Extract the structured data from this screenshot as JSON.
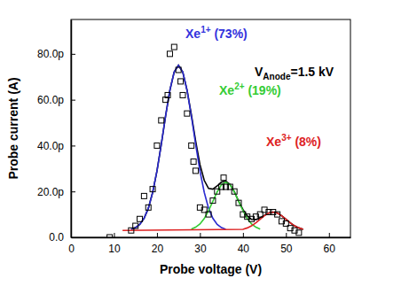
{
  "chart_data": {
    "type": "scatter",
    "x_label": "Probe voltage (V)",
    "y_label": "Probe current (A)",
    "xlim": [
      0,
      65
    ],
    "xticks": [
      0,
      10,
      20,
      30,
      40,
      50,
      60
    ],
    "ylim": [
      0,
      9.5e-11
    ],
    "yticks": [
      {
        "value": 0,
        "label": "0.0"
      },
      {
        "value": 2e-11,
        "label": "20.0p"
      },
      {
        "value": 4e-11,
        "label": "40.0p"
      },
      {
        "value": 6e-11,
        "label": "60.0p"
      },
      {
        "value": 8e-11,
        "label": "80.0p"
      }
    ],
    "grid": false,
    "series": [
      {
        "type": "scatter",
        "marker": "square",
        "color": "#000000",
        "x": [
          9,
          14,
          15,
          16,
          17,
          18,
          19,
          20,
          21,
          22,
          22.5,
          23,
          24,
          25,
          25.5,
          26,
          27,
          28,
          28.5,
          29,
          30,
          31,
          32,
          33,
          34,
          35,
          35.5,
          36,
          37,
          38,
          39,
          40,
          41,
          42,
          43,
          44,
          45,
          46,
          47,
          48,
          49,
          50,
          51,
          52,
          53
        ],
        "values": [
          0,
          3e-12,
          5e-12,
          8e-12,
          1.8e-11,
          1.3e-11,
          2.1e-11,
          4e-11,
          5.1e-11,
          6e-11,
          6.2e-11,
          8e-11,
          8.3e-11,
          7.3e-11,
          6.8e-11,
          6.2e-11,
          5.4e-11,
          4e-11,
          3.3e-11,
          2.9e-11,
          1.3e-11,
          1.2e-11,
          1e-11,
          1.6e-11,
          2e-11,
          2.2e-11,
          2.6e-11,
          2.2e-11,
          2.2e-11,
          2e-11,
          1.5e-11,
          1e-11,
          9e-12,
          8e-12,
          9e-12,
          1e-11,
          1.2e-11,
          1.1e-11,
          1.1e-11,
          1e-11,
          7e-12,
          6e-12,
          4e-12,
          3e-12,
          2e-12
        ]
      },
      {
        "type": "line",
        "line_style": "solid",
        "color": "#000000",
        "x": [
          14,
          15,
          16,
          17,
          18,
          19,
          20,
          21,
          22,
          23,
          24,
          25,
          26,
          27,
          28,
          29,
          30,
          31,
          32,
          33,
          34,
          35,
          36,
          37,
          38,
          39,
          40,
          41,
          42,
          43,
          44,
          45,
          46,
          47,
          48,
          49,
          50,
          51,
          52,
          53,
          54
        ],
        "values": [
          3.5e-12,
          4.2e-12,
          5.6e-12,
          8.3e-12,
          1.27e-11,
          1.96e-11,
          2.89e-11,
          4.05e-11,
          5.29e-11,
          6.41e-11,
          7.21e-11,
          7.5e-11,
          7.21e-11,
          6.41e-11,
          5.35e-11,
          4.19e-11,
          3.17e-11,
          2.48e-11,
          2.13e-11,
          2.1e-11,
          2.24e-11,
          2.41e-11,
          2.45e-11,
          2.31e-11,
          1.98e-11,
          1.57e-11,
          1.21e-11,
          9.3e-12,
          7.8e-12,
          7.7e-12,
          8.5e-12,
          9.6e-12,
          1.06e-11,
          1.1e-11,
          1.06e-11,
          9.4e-12,
          7.9e-12,
          6.3e-12,
          5e-12,
          4.1e-12,
          3.5e-12
        ]
      },
      {
        "type": "line",
        "line_style": "solid",
        "color": "#2a2ad0",
        "x": [
          14,
          15,
          16,
          17,
          18,
          19,
          20,
          21,
          22,
          23,
          24,
          25,
          26,
          27,
          28,
          29,
          30,
          31,
          32,
          33,
          34,
          35,
          36
        ],
        "values": [
          3.5e-12,
          4.2e-12,
          5.6e-12,
          8.3e-12,
          1.27e-11,
          1.96e-11,
          2.89e-11,
          4.05e-11,
          5.29e-11,
          6.41e-11,
          7.21e-11,
          7.5e-11,
          7.21e-11,
          6.41e-11,
          5.29e-11,
          4.05e-11,
          2.89e-11,
          1.96e-11,
          1.27e-11,
          8.3e-12,
          5.6e-12,
          4.2e-12,
          3.5e-12
        ]
      },
      {
        "type": "line",
        "line_style": "solid",
        "color": "#33cc33",
        "x": [
          28,
          29,
          30,
          31,
          32,
          33,
          34,
          35,
          36,
          37,
          38,
          39,
          40,
          41,
          42,
          43,
          44
        ],
        "values": [
          3.6e-12,
          4.4e-12,
          5.8e-12,
          8.2e-12,
          1.16e-11,
          1.57e-11,
          1.98e-11,
          2.29e-11,
          2.4e-11,
          2.29e-11,
          1.98e-11,
          1.57e-11,
          1.16e-11,
          8.2e-12,
          5.8e-12,
          4.4e-12,
          3.6e-12
        ]
      },
      {
        "type": "line",
        "line_style": "solid",
        "color": "#dd2222",
        "x": [
          12,
          40,
          41,
          42,
          43,
          44,
          45,
          46,
          47,
          48,
          49,
          50,
          51,
          52,
          53,
          54
        ],
        "values": [
          3e-12,
          3.5e-12,
          4.1e-12,
          5e-12,
          6.3e-12,
          7.9e-12,
          9.4e-12,
          1.06e-11,
          1.1e-11,
          1.06e-11,
          9.4e-12,
          7.9e-12,
          6.3e-12,
          5e-12,
          4.1e-12,
          3.5e-12
        ]
      }
    ],
    "annotations": [
      {
        "text": "Xe",
        "superscript": "1+",
        "suffix": " (73%)",
        "color": "#3333dd"
      },
      {
        "text": "Xe",
        "superscript": "2+",
        "suffix": " (19%)",
        "color": "#33cc33"
      },
      {
        "text": "Xe",
        "superscript": "3+",
        "suffix": " (8%)",
        "color": "#dd2222"
      },
      {
        "text": "V",
        "subscript": "Anode",
        "suffix": "=1.5 kV",
        "color": "#000000"
      }
    ]
  }
}
